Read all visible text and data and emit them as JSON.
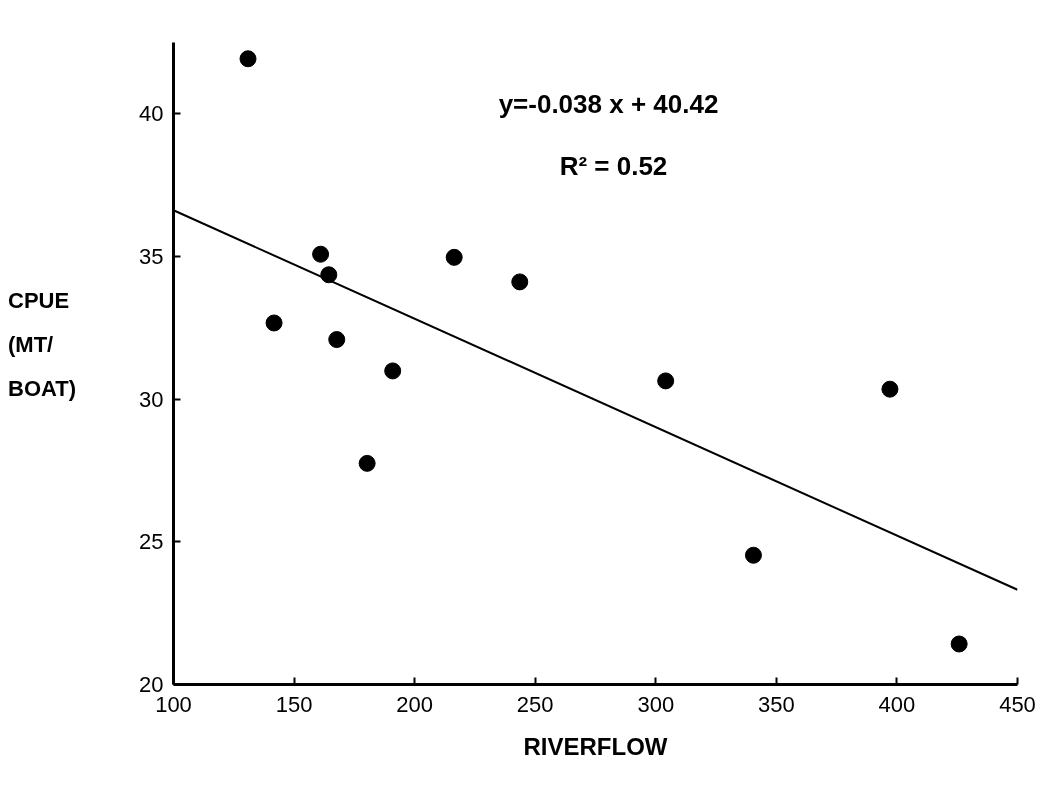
{
  "chart_data": {
    "type": "scatter",
    "xlabel": "RIVERFLOW",
    "ylabel": "CPUE\n(MT/\nBOAT)",
    "xlim": [
      100,
      450
    ],
    "ylim": [
      20,
      42.5
    ],
    "xticks": [
      100,
      150,
      200,
      250,
      300,
      350,
      400,
      450
    ],
    "yticks": [
      20,
      25,
      30,
      35,
      40
    ],
    "grid": false,
    "series": [
      {
        "marker": "circle",
        "color": "#000000",
        "x": [
          130.9,
          141.7,
          161.0,
          164.4,
          167.7,
          180.3,
          190.9,
          216.4,
          243.6,
          304.1,
          340.5,
          397.1,
          425.8
        ],
        "values": [
          41.93,
          32.67,
          35.08,
          34.36,
          32.09,
          27.75,
          30.99,
          34.97,
          34.11,
          30.64,
          24.53,
          30.35,
          21.42
        ]
      },
      {
        "type": "line",
        "color": "#000000",
        "line_style": "solid",
        "x": [
          100,
          450
        ],
        "values": [
          36.62,
          23.32
        ]
      }
    ],
    "annotations": [
      "y=-0.038 x + 40.42",
      "R² = 0.52"
    ]
  }
}
